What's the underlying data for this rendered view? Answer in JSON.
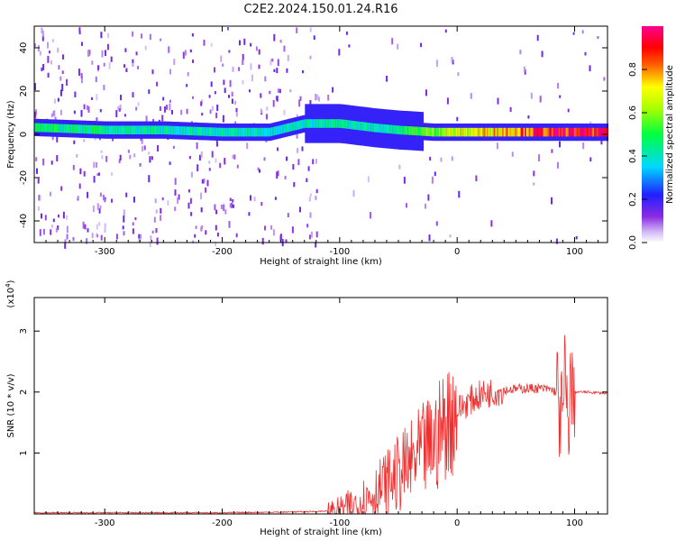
{
  "title": "C2E2.2024.150.01.24.R16",
  "chart_data": [
    {
      "type": "heatmap",
      "xlabel": "Height of straight line (km)",
      "ylabel": "Frequency (Hz)",
      "xlim": [
        -360,
        128
      ],
      "ylim": [
        -50,
        50
      ],
      "xticks": [
        -300,
        -200,
        -100,
        0,
        100
      ],
      "yticks": [
        -40,
        -20,
        0,
        20,
        40
      ],
      "xtick_labels": [
        "-300",
        "-200",
        "-100",
        "0",
        "100"
      ],
      "ytick_labels": [
        "-40",
        "-20",
        "0",
        "20",
        "40"
      ],
      "colorbar": {
        "label": "Normalized spectral amplitude",
        "range": [
          0,
          1
        ],
        "ticks": [
          0.0,
          0.2,
          0.4,
          0.6,
          0.8
        ],
        "tick_labels": [
          "0.0",
          "0.2",
          "0.4",
          "0.6",
          "0.8"
        ],
        "colormap": "rainbow (white-violet-blue-cyan-green-yellow-red-magenta)"
      },
      "ridge": [
        {
          "x": -350,
          "f": 3,
          "amp": 0.45
        },
        {
          "x": -300,
          "f": 2,
          "amp": 0.45
        },
        {
          "x": -250,
          "f": 2,
          "amp": 0.4
        },
        {
          "x": -200,
          "f": 1,
          "amp": 0.4
        },
        {
          "x": -160,
          "f": 1,
          "amp": 0.4
        },
        {
          "x": -130,
          "f": 5,
          "amp": 0.4
        },
        {
          "x": -100,
          "f": 5,
          "amp": 0.42
        },
        {
          "x": -70,
          "f": 3,
          "amp": 0.4
        },
        {
          "x": -50,
          "f": 2,
          "amp": 0.45
        },
        {
          "x": -20,
          "f": 1,
          "amp": 0.6
        },
        {
          "x": 0,
          "f": 1,
          "amp": 0.65
        },
        {
          "x": 30,
          "f": 1,
          "amp": 0.75
        },
        {
          "x": 60,
          "f": 1,
          "amp": 0.85
        },
        {
          "x": 90,
          "f": 1,
          "amp": 0.9
        },
        {
          "x": 128,
          "f": 1,
          "amp": 0.9
        }
      ]
    },
    {
      "type": "line",
      "xlabel": "Height of straight line (km)",
      "ylabel": "SNR (10 * v/v)",
      "y_multiplier": "(x10^4)",
      "xlim": [
        -360,
        128
      ],
      "ylim": [
        0,
        3.55
      ],
      "xticks": [
        -300,
        -200,
        -100,
        0,
        100
      ],
      "yticks": [
        1,
        2,
        3
      ],
      "xtick_labels": [
        "-300",
        "-200",
        "-100",
        "0",
        "100"
      ],
      "ytick_labels": [
        "1",
        "2",
        "3"
      ],
      "color": "#ee3030",
      "series": [
        {
          "x": [
            -360,
            -300,
            -200,
            -150,
            -120,
            -100,
            -90,
            -80,
            -70,
            -60,
            -50,
            -40,
            -30,
            -20,
            -15,
            -10,
            0,
            10,
            20,
            30,
            40,
            50,
            60,
            70,
            80,
            85,
            88,
            90,
            92,
            94,
            96,
            98,
            100,
            110,
            128
          ],
          "y": [
            0.02,
            0.02,
            0.02,
            0.03,
            0.04,
            0.06,
            0.12,
            0.22,
            0.35,
            0.5,
            0.65,
            0.8,
            1.0,
            1.15,
            1.3,
            1.5,
            1.7,
            1.85,
            1.95,
            2.0,
            2.03,
            2.05,
            2.06,
            2.06,
            2.04,
            2.0,
            1.6,
            1.5,
            2.4,
            1.2,
            2.1,
            1.9,
            2.0,
            2.0,
            1.98
          ]
        }
      ]
    }
  ]
}
